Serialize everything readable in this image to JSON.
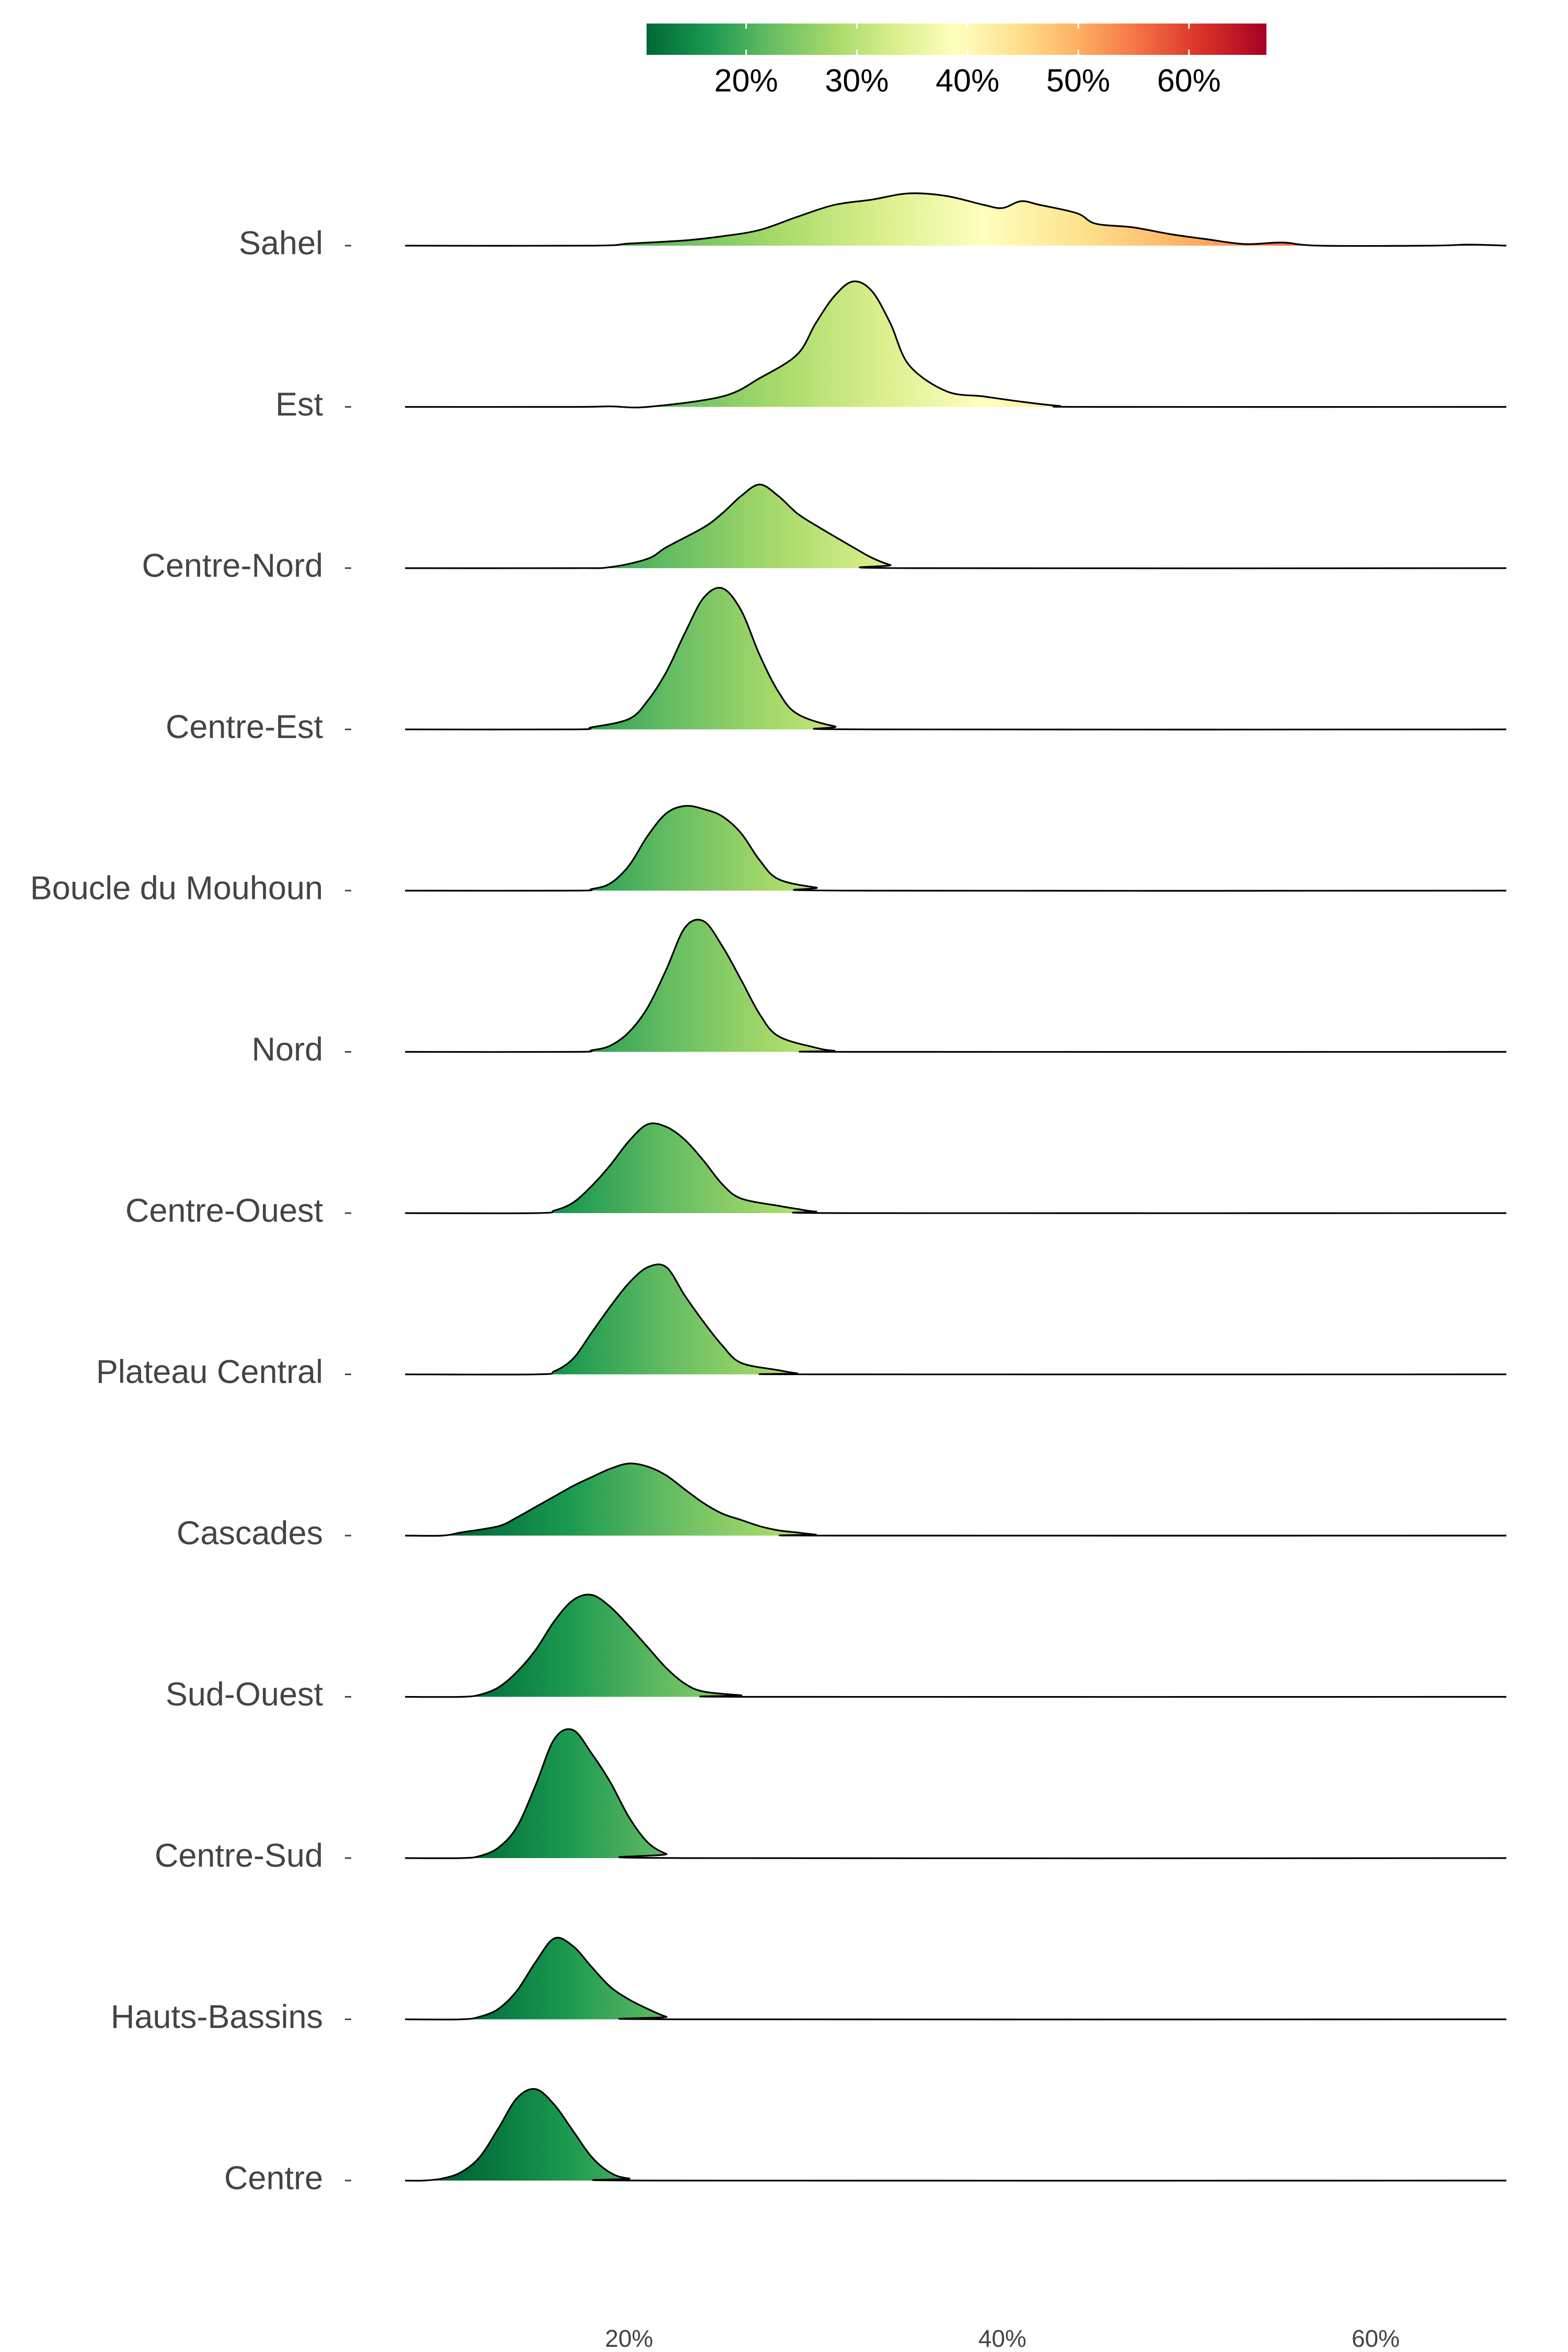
{
  "chart_data": {
    "type": "ridgeline-density",
    "title": "",
    "xlabel": "",
    "ylabel": "",
    "xlim": [
      8,
      67
    ],
    "x_ticks": [
      20,
      40,
      60
    ],
    "x_tick_labels": [
      "20%",
      "40%",
      "60%"
    ],
    "grid": false,
    "legend": {
      "placement": "top-center",
      "type": "colorbar",
      "range": [
        11,
        67
      ],
      "ticks": [
        20,
        30,
        40,
        50,
        60
      ],
      "tick_labels": [
        "20%",
        "30%",
        "40%",
        "50%",
        "60%"
      ]
    },
    "colorscale": {
      "name": "RdYlGn-reversed",
      "domain": [
        11,
        67
      ],
      "stops": [
        "#006837",
        "#1a9850",
        "#66bd63",
        "#a6d96a",
        "#d9ef8b",
        "#ffffbf",
        "#fee08b",
        "#fdae61",
        "#f46d43",
        "#d73027",
        "#a50026"
      ]
    },
    "series": [
      {
        "name": "Sahel",
        "points": [
          [
            8,
            0
          ],
          [
            18,
            0
          ],
          [
            20,
            0.04
          ],
          [
            23,
            0.1
          ],
          [
            25,
            0.18
          ],
          [
            27,
            0.3
          ],
          [
            29,
            0.55
          ],
          [
            31,
            0.78
          ],
          [
            33,
            0.88
          ],
          [
            35,
            1.0
          ],
          [
            37,
            0.95
          ],
          [
            39,
            0.78
          ],
          [
            40,
            0.72
          ],
          [
            41,
            0.85
          ],
          [
            42,
            0.78
          ],
          [
            44,
            0.62
          ],
          [
            45,
            0.42
          ],
          [
            47,
            0.35
          ],
          [
            49,
            0.22
          ],
          [
            51,
            0.12
          ],
          [
            53,
            0.03
          ],
          [
            55,
            0.06
          ],
          [
            57,
            0.0
          ],
          [
            63,
            0
          ],
          [
            65,
            0.02
          ],
          [
            67,
            0
          ]
        ]
      },
      {
        "name": "Est",
        "points": [
          [
            8,
            0
          ],
          [
            17,
            0
          ],
          [
            19,
            0.01
          ],
          [
            21,
            0
          ],
          [
            25,
            0.2
          ],
          [
            27,
            0.55
          ],
          [
            29,
            1.0
          ],
          [
            30,
            1.6
          ],
          [
            31,
            2.12
          ],
          [
            32,
            2.4
          ],
          [
            33,
            2.22
          ],
          [
            34,
            1.6
          ],
          [
            35,
            0.8
          ],
          [
            37,
            0.3
          ],
          [
            39,
            0.2
          ],
          [
            41,
            0.1
          ],
          [
            43,
            0.02
          ],
          [
            45,
            0
          ],
          [
            67,
            0
          ]
        ]
      },
      {
        "name": "Centre-Nord",
        "points": [
          [
            8,
            0
          ],
          [
            17,
            0
          ],
          [
            19,
            0.02
          ],
          [
            21,
            0.18
          ],
          [
            22,
            0.4
          ],
          [
            24,
            0.78
          ],
          [
            25,
            1.05
          ],
          [
            26,
            1.38
          ],
          [
            27,
            1.6
          ],
          [
            28,
            1.38
          ],
          [
            29,
            1.05
          ],
          [
            30,
            0.82
          ],
          [
            32,
            0.4
          ],
          [
            33,
            0.2
          ],
          [
            34,
            0.06
          ],
          [
            35,
            0
          ],
          [
            67,
            0
          ]
        ]
      },
      {
        "name": "Centre-Est",
        "points": [
          [
            8,
            0
          ],
          [
            17,
            0
          ],
          [
            18,
            0.04
          ],
          [
            20,
            0.2
          ],
          [
            21,
            0.55
          ],
          [
            22,
            1.1
          ],
          [
            23,
            1.85
          ],
          [
            24,
            2.52
          ],
          [
            25,
            2.7
          ],
          [
            26,
            2.28
          ],
          [
            27,
            1.42
          ],
          [
            28,
            0.72
          ],
          [
            29,
            0.3
          ],
          [
            31,
            0.06
          ],
          [
            33,
            0
          ],
          [
            67,
            0
          ]
        ]
      },
      {
        "name": "Boucle du Mouhoun",
        "points": [
          [
            8,
            0
          ],
          [
            17,
            0
          ],
          [
            18,
            0.03
          ],
          [
            19,
            0.14
          ],
          [
            20,
            0.48
          ],
          [
            21,
            1.05
          ],
          [
            22,
            1.48
          ],
          [
            23,
            1.62
          ],
          [
            24,
            1.56
          ],
          [
            25,
            1.42
          ],
          [
            26,
            1.1
          ],
          [
            27,
            0.58
          ],
          [
            28,
            0.22
          ],
          [
            30,
            0.06
          ],
          [
            32,
            0
          ],
          [
            67,
            0
          ]
        ]
      },
      {
        "name": "Nord",
        "points": [
          [
            8,
            0
          ],
          [
            17,
            0
          ],
          [
            18,
            0.03
          ],
          [
            19,
            0.12
          ],
          [
            20,
            0.38
          ],
          [
            21,
            0.85
          ],
          [
            22,
            1.58
          ],
          [
            23,
            2.38
          ],
          [
            24,
            2.5
          ],
          [
            25,
            2.02
          ],
          [
            26,
            1.38
          ],
          [
            27,
            0.72
          ],
          [
            28,
            0.3
          ],
          [
            30,
            0.08
          ],
          [
            31,
            0.02
          ],
          [
            32,
            0
          ],
          [
            67,
            0
          ]
        ]
      },
      {
        "name": "Centre-Ouest",
        "points": [
          [
            8,
            0
          ],
          [
            15,
            0
          ],
          [
            16,
            0.05
          ],
          [
            17,
            0.2
          ],
          [
            18,
            0.52
          ],
          [
            19,
            0.92
          ],
          [
            20,
            1.38
          ],
          [
            21,
            1.7
          ],
          [
            22,
            1.65
          ],
          [
            23,
            1.4
          ],
          [
            24,
            1.0
          ],
          [
            25,
            0.55
          ],
          [
            26,
            0.28
          ],
          [
            28,
            0.14
          ],
          [
            29,
            0.08
          ],
          [
            30,
            0.03
          ],
          [
            32,
            0
          ],
          [
            67,
            0
          ]
        ]
      },
      {
        "name": "Plateau Central",
        "points": [
          [
            8,
            0
          ],
          [
            15,
            0
          ],
          [
            16,
            0.06
          ],
          [
            17,
            0.3
          ],
          [
            18,
            0.8
          ],
          [
            19,
            1.3
          ],
          [
            20,
            1.75
          ],
          [
            21,
            2.05
          ],
          [
            22,
            2.05
          ],
          [
            23,
            1.5
          ],
          [
            24,
            1.0
          ],
          [
            25,
            0.55
          ],
          [
            26,
            0.22
          ],
          [
            28,
            0.08
          ],
          [
            29,
            0.02
          ],
          [
            30,
            0
          ],
          [
            67,
            0
          ]
        ]
      },
      {
        "name": "Cascades",
        "points": [
          [
            8,
            0
          ],
          [
            10,
            0
          ],
          [
            11,
            0.06
          ],
          [
            13,
            0.18
          ],
          [
            14,
            0.35
          ],
          [
            15,
            0.55
          ],
          [
            16,
            0.75
          ],
          [
            17,
            0.95
          ],
          [
            18,
            1.12
          ],
          [
            19,
            1.28
          ],
          [
            20,
            1.38
          ],
          [
            21,
            1.32
          ],
          [
            22,
            1.15
          ],
          [
            23,
            0.88
          ],
          [
            24,
            0.62
          ],
          [
            25,
            0.42
          ],
          [
            26,
            0.3
          ],
          [
            27,
            0.18
          ],
          [
            28,
            0.1
          ],
          [
            29,
            0.06
          ],
          [
            30,
            0.02
          ],
          [
            31,
            0
          ],
          [
            67,
            0
          ]
        ]
      },
      {
        "name": "Sud-Ouest",
        "points": [
          [
            8,
            0
          ],
          [
            11,
            0
          ],
          [
            12,
            0.04
          ],
          [
            13,
            0.18
          ],
          [
            14,
            0.48
          ],
          [
            15,
            0.9
          ],
          [
            16,
            1.45
          ],
          [
            17,
            1.85
          ],
          [
            18,
            1.95
          ],
          [
            19,
            1.72
          ],
          [
            20,
            1.35
          ],
          [
            21,
            0.95
          ],
          [
            22,
            0.55
          ],
          [
            23,
            0.25
          ],
          [
            24,
            0.1
          ],
          [
            26,
            0.03
          ],
          [
            27,
            0
          ],
          [
            67,
            0
          ]
        ]
      },
      {
        "name": "Centre-Sud",
        "points": [
          [
            8,
            0
          ],
          [
            11,
            0
          ],
          [
            12,
            0.04
          ],
          [
            13,
            0.2
          ],
          [
            14,
            0.6
          ],
          [
            15,
            1.4
          ],
          [
            16,
            2.28
          ],
          [
            17,
            2.45
          ],
          [
            18,
            2.0
          ],
          [
            19,
            1.45
          ],
          [
            20,
            0.78
          ],
          [
            21,
            0.3
          ],
          [
            22,
            0.08
          ],
          [
            23,
            0
          ],
          [
            67,
            0
          ]
        ]
      },
      {
        "name": "Hauts-Bassins",
        "points": [
          [
            8,
            0
          ],
          [
            11,
            0
          ],
          [
            12,
            0.05
          ],
          [
            13,
            0.2
          ],
          [
            14,
            0.55
          ],
          [
            15,
            1.1
          ],
          [
            16,
            1.55
          ],
          [
            17,
            1.4
          ],
          [
            18,
            1.0
          ],
          [
            19,
            0.62
          ],
          [
            20,
            0.38
          ],
          [
            21,
            0.2
          ],
          [
            22,
            0.05
          ],
          [
            23,
            0
          ],
          [
            67,
            0
          ]
        ]
      },
      {
        "name": "Centre",
        "points": [
          [
            8,
            0
          ],
          [
            9,
            0
          ],
          [
            10,
            0.04
          ],
          [
            11,
            0.16
          ],
          [
            12,
            0.45
          ],
          [
            13,
            1.0
          ],
          [
            14,
            1.58
          ],
          [
            15,
            1.75
          ],
          [
            16,
            1.45
          ],
          [
            17,
            0.95
          ],
          [
            18,
            0.45
          ],
          [
            19,
            0.15
          ],
          [
            20,
            0.04
          ],
          [
            22,
            0
          ],
          [
            67,
            0
          ]
        ]
      }
    ]
  }
}
